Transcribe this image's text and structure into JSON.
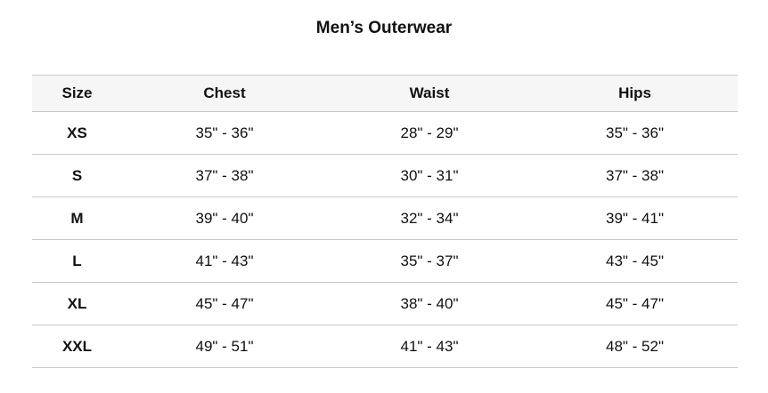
{
  "title": "Men’s Outerwear",
  "columns": [
    "Size",
    "Chest",
    "Waist",
    "Hips"
  ],
  "rows": [
    [
      "XS",
      "35\" - 36\"",
      "28\" - 29\"",
      "35\" - 36\""
    ],
    [
      "S",
      "37\" - 38\"",
      "30\" - 31\"",
      "37\" - 38\""
    ],
    [
      "M",
      "39\" - 40\"",
      "32\" - 34\"",
      "39\" - 41\""
    ],
    [
      "L",
      "41\" - 43\"",
      "35\" - 37\"",
      "43\" - 45\""
    ],
    [
      "XL",
      "45\" - 47\"",
      "38\" - 40\"",
      "45\" - 47\""
    ],
    [
      "XXL",
      "49\" - 51\"",
      "41\" - 43\"",
      "48\" - 52\""
    ]
  ]
}
